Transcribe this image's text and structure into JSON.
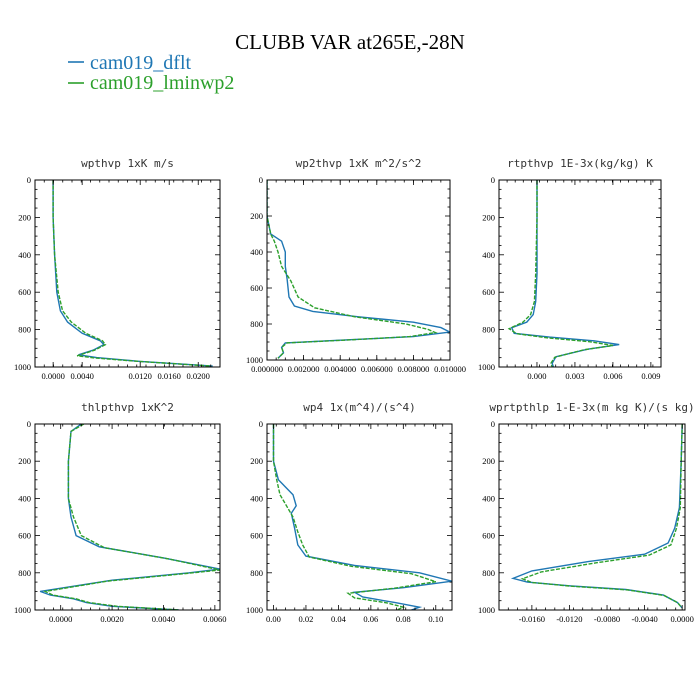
{
  "figure": {
    "title": "CLUBB VAR at265E,-28N",
    "colors": {
      "s1": "#1f77b4",
      "s2": "#2ca02c"
    },
    "legend": [
      {
        "label": "cam019_dflt",
        "color": "#1f77b4",
        "dash": false
      },
      {
        "label": "cam019_lminwp2",
        "color": "#2ca02c",
        "dash": true
      }
    ]
  },
  "chart_data": [
    {
      "type": "line",
      "title": "wpthvp  1xK m/s",
      "xlim": [
        -0.0025,
        0.023
      ],
      "ylim": [
        1000,
        0
      ],
      "xticks": [
        0.0,
        0.004,
        0.012,
        0.016,
        0.02
      ],
      "xticklabels": [
        "0.0000",
        "0.0040",
        "0.0120",
        "0.0160",
        "0.0200"
      ],
      "yticks": [
        0,
        200,
        400,
        600,
        800,
        1000
      ],
      "series": [
        {
          "name": "cam019_dflt",
          "x": [
            0.0,
            0.0,
            0.0002,
            0.0005,
            0.001,
            0.002,
            0.004,
            0.0065,
            0.007,
            0.0055,
            0.0035,
            0.006,
            0.012,
            0.018,
            0.022
          ],
          "y": [
            0,
            200,
            400,
            600,
            700,
            760,
            820,
            860,
            880,
            910,
            935,
            950,
            970,
            985,
            995
          ]
        },
        {
          "name": "cam019_lminwp2",
          "x": [
            0.0,
            0.0,
            0.0002,
            0.0007,
            0.0013,
            0.0025,
            0.0045,
            0.0068,
            0.0072,
            0.0057,
            0.0033,
            0.0058,
            0.0118,
            0.0178,
            0.0218
          ],
          "y": [
            0,
            200,
            400,
            600,
            700,
            760,
            820,
            860,
            880,
            910,
            940,
            952,
            970,
            985,
            995
          ]
        }
      ]
    },
    {
      "type": "line",
      "title": "wp2thvp  1xK m^2/s^2",
      "xlim": [
        0.0,
        0.01
      ],
      "ylim": [
        1000,
        0
      ],
      "xticks": [
        0.0,
        0.002,
        0.004,
        0.006,
        0.008,
        0.01
      ],
      "xticklabels": [
        "0.000000",
        "0.002000",
        "0.004000",
        "0.006000",
        "0.008000",
        "0.010000"
      ],
      "yticks": [
        0,
        200,
        400,
        600,
        800,
        1000
      ],
      "series": [
        {
          "name": "cam019_dflt",
          "x": [
            0.0,
            0.0,
            0.0002,
            0.0008,
            0.001,
            0.001,
            0.0011,
            0.0012,
            0.0015,
            0.0025,
            0.005,
            0.008,
            0.0095,
            0.01,
            0.008,
            0.004,
            0.001,
            0.0008,
            0.0009,
            0.0006
          ],
          "y": [
            0,
            200,
            300,
            340,
            400,
            480,
            550,
            650,
            700,
            730,
            760,
            790,
            820,
            845,
            870,
            890,
            905,
            930,
            960,
            990
          ]
        },
        {
          "name": "cam019_lminwp2",
          "x": [
            0.0,
            0.0,
            0.0002,
            0.0004,
            0.0006,
            0.0008,
            0.0013,
            0.0017,
            0.0026,
            0.0048,
            0.0076,
            0.0088,
            0.0092,
            0.0078,
            0.0042,
            0.0011,
            0.0008,
            0.0009,
            0.0006
          ],
          "y": [
            0,
            200,
            300,
            340,
            400,
            480,
            560,
            650,
            710,
            760,
            800,
            830,
            848,
            870,
            890,
            905,
            930,
            960,
            990
          ]
        }
      ]
    },
    {
      "type": "line",
      "title": "rtpthvp  1E-3x(kg/kg) K",
      "xlim": [
        -0.003,
        0.0098
      ],
      "ylim": [
        1000,
        0
      ],
      "xticks": [
        0.0,
        0.003,
        0.006,
        0.009
      ],
      "xticklabels": [
        "0.000",
        "0.003",
        "0.006",
        "0.009"
      ],
      "yticks": [
        0,
        200,
        400,
        600,
        800,
        1000
      ],
      "series": [
        {
          "name": "cam019_dflt",
          "x": [
            0.0,
            0.0,
            0.0,
            -0.0001,
            -0.0003,
            -0.0008,
            -0.002,
            -0.0018,
            0.001,
            0.0045,
            0.0065,
            0.004,
            0.0015,
            0.0012,
            0.0013
          ],
          "y": [
            0,
            200,
            500,
            650,
            720,
            760,
            790,
            820,
            840,
            860,
            880,
            905,
            945,
            980,
            1000
          ]
        },
        {
          "name": "cam019_lminwp2",
          "x": [
            0.0,
            0.0,
            -0.0001,
            -0.0002,
            -0.0005,
            -0.0011,
            -0.0022,
            -0.0016,
            0.0009,
            0.0042,
            0.006,
            0.0037,
            0.0014,
            0.0011,
            0.0012
          ],
          "y": [
            0,
            200,
            500,
            650,
            720,
            760,
            795,
            822,
            845,
            865,
            885,
            908,
            948,
            980,
            1000
          ]
        }
      ]
    },
    {
      "type": "line",
      "title": "thlpthvp  1xK^2",
      "xlim": [
        -0.001,
        0.0062
      ],
      "ylim": [
        1000,
        0
      ],
      "xticks": [
        0.0,
        0.002,
        0.004,
        0.006
      ],
      "xticklabels": [
        "0.0000",
        "0.0020",
        "0.0040",
        "0.0060"
      ],
      "yticks": [
        0,
        200,
        400,
        600,
        800,
        1000
      ],
      "series": [
        {
          "name": "cam019_dflt",
          "x": [
            0.0008,
            0.0004,
            0.0003,
            0.0003,
            0.0004,
            0.0006,
            0.0015,
            0.004,
            0.0062,
            0.005,
            0.002,
            -0.0008,
            -0.0004,
            0.0005,
            0.001,
            0.002,
            0.0046
          ],
          "y": [
            0,
            40,
            200,
            400,
            500,
            600,
            660,
            720,
            780,
            800,
            840,
            900,
            920,
            940,
            960,
            980,
            1000
          ]
        },
        {
          "name": "cam019_lminwp2",
          "x": [
            0.0009,
            0.0004,
            0.0003,
            0.0003,
            0.0005,
            0.0008,
            0.0017,
            0.0042,
            0.0062,
            0.0048,
            0.0018,
            -0.0006,
            -0.0003,
            0.0006,
            0.0011,
            0.0022,
            0.0046
          ],
          "y": [
            0,
            40,
            200,
            400,
            500,
            600,
            665,
            725,
            785,
            805,
            845,
            900,
            920,
            940,
            960,
            980,
            1000
          ]
        }
      ]
    },
    {
      "type": "line",
      "title": "wp4  1x(m^4)/(s^4)",
      "xlim": [
        -0.004,
        0.11
      ],
      "ylim": [
        1000,
        0
      ],
      "xticks": [
        0.0,
        0.02,
        0.04,
        0.06,
        0.08,
        0.1
      ],
      "xticklabels": [
        "0.00",
        "0.02",
        "0.04",
        "0.06",
        "0.08",
        "0.10"
      ],
      "yticks": [
        0,
        200,
        400,
        600,
        800,
        1000
      ],
      "series": [
        {
          "name": "cam019_dflt",
          "x": [
            0.0,
            0.0,
            0.003,
            0.012,
            0.014,
            0.011,
            0.013,
            0.015,
            0.02,
            0.05,
            0.09,
            0.11,
            0.08,
            0.05,
            0.055,
            0.075,
            0.09,
            0.085
          ],
          "y": [
            0,
            200,
            300,
            380,
            440,
            480,
            560,
            650,
            710,
            760,
            800,
            845,
            880,
            905,
            930,
            960,
            985,
            1000
          ]
        },
        {
          "name": "cam019_lminwp2",
          "x": [
            0.0,
            0.0,
            0.002,
            0.004,
            0.008,
            0.012,
            0.015,
            0.018,
            0.022,
            0.048,
            0.085,
            0.1,
            0.075,
            0.046,
            0.05,
            0.07,
            0.08,
            0.076
          ],
          "y": [
            0,
            200,
            300,
            380,
            440,
            500,
            580,
            650,
            715,
            765,
            805,
            848,
            882,
            910,
            935,
            962,
            985,
            1000
          ]
        }
      ]
    },
    {
      "type": "line",
      "title": "wprtpthlp  1-E-3x(m kg K)/(s kg)",
      "xlim": [
        -0.0195,
        0.0003
      ],
      "ylim": [
        1000,
        0
      ],
      "xticks": [
        -0.016,
        -0.012,
        -0.008,
        -0.004,
        0.0
      ],
      "xticklabels": [
        "-0.0160",
        "-0.0120",
        "-0.0080",
        "-0.0040",
        "0.0000"
      ],
      "yticks": [
        0,
        200,
        400,
        600,
        800,
        1000
      ],
      "series": [
        {
          "name": "cam019_dflt",
          "x": [
            0.0,
            -0.0001,
            -0.0003,
            -0.0008,
            -0.0015,
            -0.004,
            -0.01,
            -0.016,
            -0.018,
            -0.0165,
            -0.012,
            -0.006,
            -0.002,
            -0.0005,
            0.0
          ],
          "y": [
            0,
            200,
            450,
            560,
            640,
            700,
            740,
            790,
            830,
            850,
            870,
            890,
            920,
            960,
            990
          ]
        },
        {
          "name": "cam019_lminwp2",
          "x": [
            0.0,
            -0.0001,
            -0.0002,
            -0.0006,
            -0.0012,
            -0.0035,
            -0.009,
            -0.015,
            -0.017,
            -0.016,
            -0.0118,
            -0.0058,
            -0.0019,
            -0.0005,
            0.0
          ],
          "y": [
            0,
            200,
            450,
            560,
            650,
            705,
            745,
            795,
            832,
            852,
            872,
            892,
            922,
            960,
            990
          ]
        }
      ]
    }
  ]
}
